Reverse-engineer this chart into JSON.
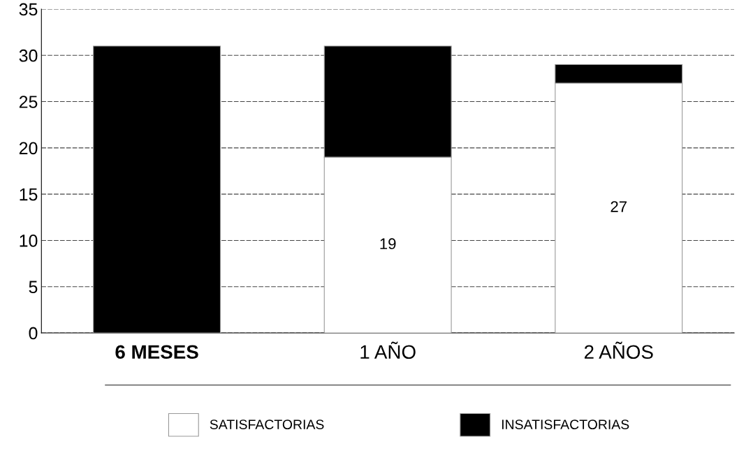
{
  "chart_data": {
    "type": "bar",
    "stacked": true,
    "categories": [
      "6 MESES",
      "1 AÑO",
      "2 AÑOS"
    ],
    "series": [
      {
        "name": "SATISFACTORIAS",
        "color": "#ffffff",
        "values": [
          0,
          19,
          27
        ],
        "value_labels": [
          null,
          "19",
          "27"
        ]
      },
      {
        "name": "INSATISFACTORIAS",
        "color": "#000000",
        "values": [
          31,
          12,
          2
        ]
      }
    ],
    "ylim": [
      0,
      35
    ],
    "yticks": [
      0,
      5,
      10,
      15,
      20,
      25,
      30,
      35
    ],
    "grid": "y",
    "legend": "bottom"
  }
}
